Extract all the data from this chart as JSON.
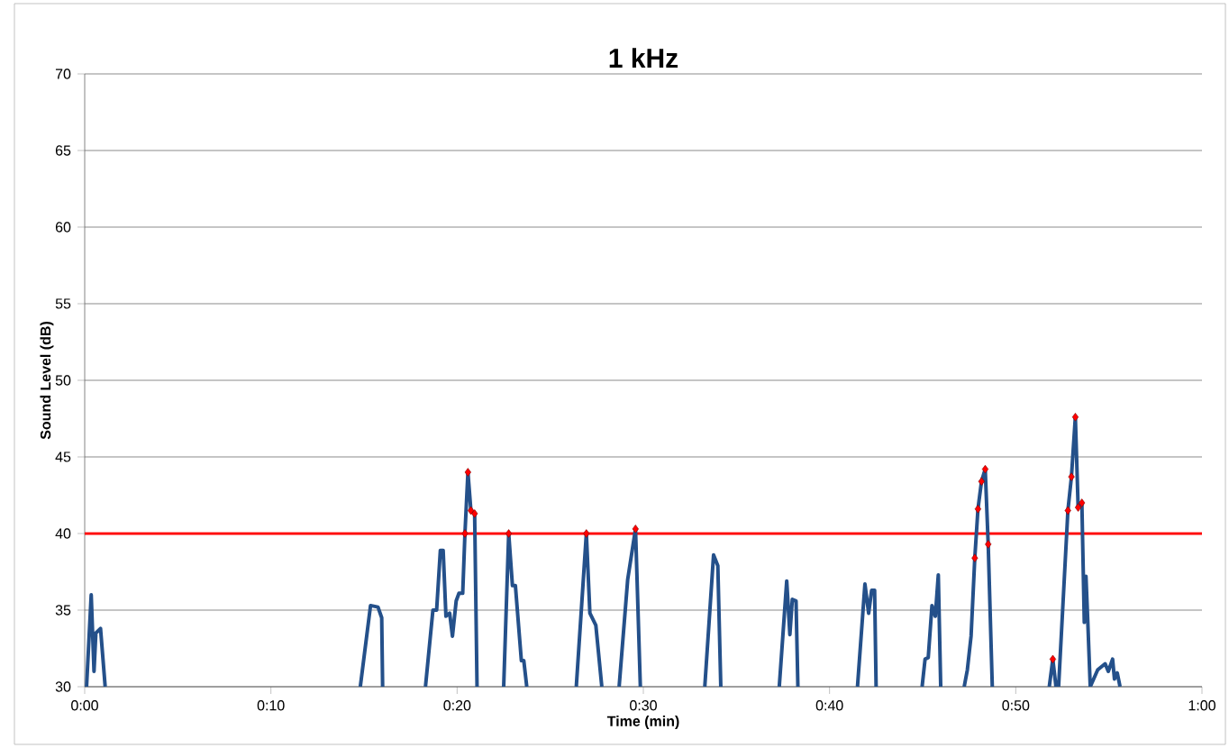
{
  "chart_data": {
    "type": "line",
    "title": "1 kHz",
    "xlabel": "Time (min)",
    "ylabel": "Sound Level (dB)",
    "xlim": [
      0,
      60
    ],
    "ylim": [
      30,
      70
    ],
    "xticks": [
      {
        "value": 0,
        "label": "0:00"
      },
      {
        "value": 10,
        "label": "0:10"
      },
      {
        "value": 20,
        "label": "0:20"
      },
      {
        "value": 30,
        "label": "0:30"
      },
      {
        "value": 40,
        "label": "0:40"
      },
      {
        "value": 50,
        "label": "0:50"
      },
      {
        "value": 60,
        "label": "1:00"
      }
    ],
    "yticks": [
      30,
      35,
      40,
      45,
      50,
      55,
      60,
      65,
      70
    ],
    "grid": "y",
    "ref_lines": [
      {
        "axis": "y",
        "value": 40,
        "color": "#ff0000",
        "line_style": "solid"
      }
    ],
    "series": [
      {
        "color": "#24508a",
        "marker": "none",
        "line_style": "solid",
        "x": [
          0.1,
          0.35,
          0.5,
          0.6,
          0.85,
          1.1,
          8,
          14.8,
          15.35,
          15.75,
          15.95,
          16.0,
          17,
          18.3,
          18.7,
          18.9,
          19.1,
          19.25,
          19.4,
          19.6,
          19.75,
          19.95,
          20.1,
          20.3,
          20.42,
          20.58,
          20.74,
          20.94,
          21.07,
          22,
          22.5,
          22.77,
          22.97,
          23.13,
          23.45,
          23.58,
          23.74,
          25,
          26.4,
          26.94,
          27.13,
          27.45,
          27.77,
          28.2,
          28.7,
          29.16,
          29.58,
          29.84,
          31,
          33.3,
          33.77,
          34.0,
          34.16,
          36,
          37.3,
          37.7,
          37.87,
          38.0,
          38.2,
          38.3,
          40,
          41.5,
          41.9,
          42.1,
          42.26,
          42.42,
          42.5,
          44,
          44.97,
          45.13,
          45.3,
          45.5,
          45.68,
          45.84,
          45.97,
          46.5,
          47.23,
          47.4,
          47.6,
          47.8,
          47.97,
          48.16,
          48.36,
          48.52,
          48.74,
          50,
          51.8,
          51.99,
          52.16,
          52.3,
          52.8,
          52.99,
          53.2,
          53.35,
          53.55,
          53.68,
          53.77,
          53.87,
          54.0,
          54.4,
          54.8,
          54.97,
          55.2,
          55.3,
          55.45,
          55.6
        ],
        "values": [
          30,
          36,
          31,
          33.5,
          33.8,
          30,
          null,
          30,
          35.3,
          35.2,
          34.5,
          30,
          null,
          30,
          35,
          35,
          38.9,
          38.9,
          34.6,
          34.8,
          33.3,
          35.6,
          36.1,
          36.1,
          40.0,
          44.0,
          41.5,
          41.3,
          30,
          null,
          30,
          40.0,
          36.6,
          36.6,
          31.7,
          31.7,
          30,
          null,
          30,
          40.0,
          34.8,
          34,
          30,
          null,
          30,
          37,
          40.3,
          30,
          null,
          30,
          38.6,
          37.9,
          30,
          null,
          30,
          36.9,
          33.4,
          35.7,
          35.6,
          30,
          null,
          30,
          36.7,
          34.8,
          36.3,
          36.3,
          30,
          null,
          30,
          31.8,
          31.9,
          35.3,
          34.6,
          37.3,
          30,
          null,
          30,
          31.1,
          33.3,
          38.4,
          41.6,
          43.4,
          44.2,
          39.3,
          30,
          null,
          30,
          31.8,
          30,
          30,
          41.5,
          43.7,
          47.6,
          41.7,
          42.0,
          34.2,
          37.2,
          34.2,
          30,
          31.1,
          31.5,
          31,
          31.8,
          30.5,
          30.9,
          30
        ]
      },
      {
        "type": "scatter",
        "color": "#ff0000",
        "marker": "diamond",
        "x": [
          20.42,
          20.58,
          20.74,
          20.94,
          22.77,
          26.94,
          29.58,
          47.8,
          47.97,
          48.16,
          48.36,
          48.52,
          51.99,
          52.8,
          52.99,
          53.2,
          53.35,
          53.55
        ],
        "values": [
          40.0,
          44.0,
          41.5,
          41.3,
          40.0,
          40.0,
          40.3,
          38.4,
          41.6,
          43.4,
          44.2,
          39.3,
          31.8,
          41.5,
          43.7,
          47.6,
          41.7,
          42.0
        ]
      }
    ]
  }
}
